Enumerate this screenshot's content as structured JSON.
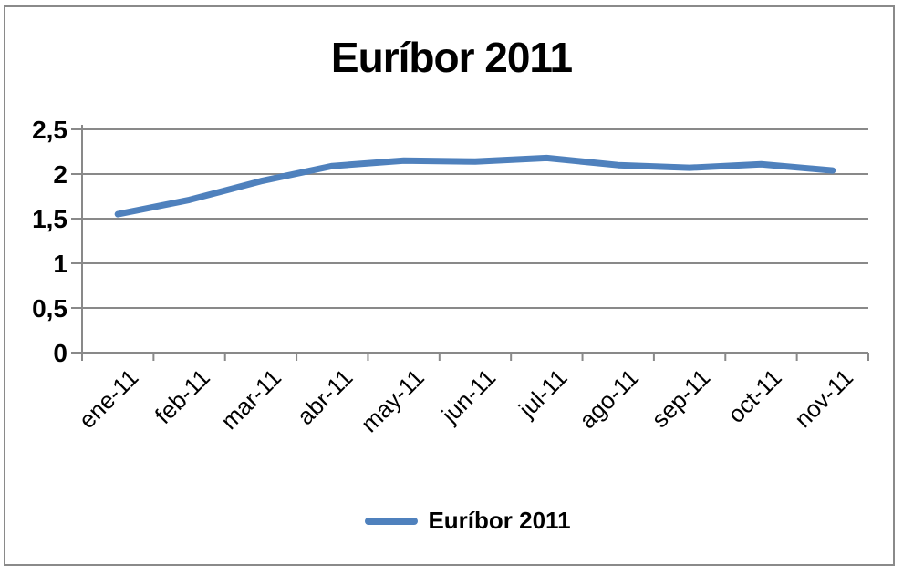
{
  "window": {
    "background_color": "#ffffff",
    "border_color": "#8a8a8a"
  },
  "chart_data": {
    "type": "line",
    "title": "Euríbor 2011",
    "categories": [
      "ene-11",
      "feb-11",
      "mar-11",
      "abr-11",
      "may-11",
      "jun-11",
      "jul-11",
      "ago-11",
      "sep-11",
      "oct-11",
      "nov-11"
    ],
    "series": [
      {
        "name": "Euríbor 2011",
        "values": [
          1.55,
          1.71,
          1.92,
          2.09,
          2.15,
          2.14,
          2.18,
          2.1,
          2.07,
          2.11,
          2.04
        ],
        "color": "#4f81bd",
        "line_width": 7
      }
    ],
    "xlabel": "",
    "ylabel": "",
    "ylim": [
      0,
      2.5
    ],
    "ytick_interval": 0.5,
    "ytick_labels": [
      "0",
      "0,5",
      "1",
      "1,5",
      "2",
      "2,5"
    ],
    "grid": true,
    "gridline_color": "#898989",
    "legend_position": "bottom"
  },
  "legend": {
    "label": "Euríbor 2011",
    "swatch_color": "#4f81bd"
  }
}
